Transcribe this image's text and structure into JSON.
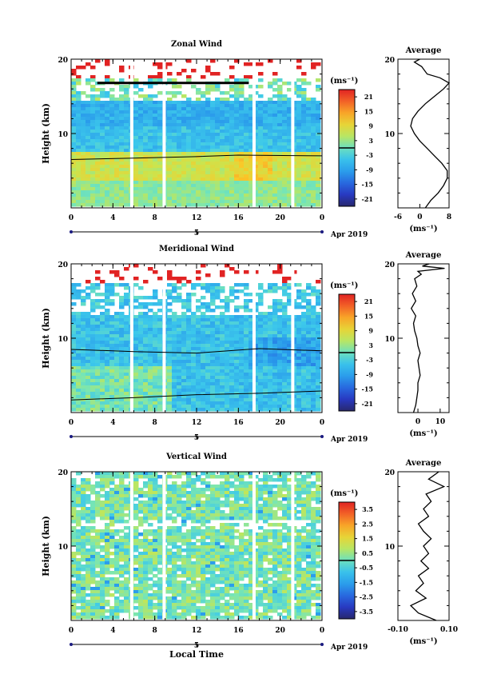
{
  "x_axis_title": "Local Time",
  "chart_data": [
    {
      "type": "heatmap",
      "title": "Zonal Wind",
      "ylabel": "Height (km)",
      "xlim": [
        0,
        24
      ],
      "ylim": [
        0,
        20
      ],
      "xticks": [
        "0",
        "4",
        "8",
        "12",
        "16",
        "20",
        "0"
      ],
      "yticks": [
        "10",
        "20"
      ],
      "date_label": "5",
      "date_suffix": "Apr 2019",
      "colorbar": {
        "unit": "(ms⁻¹)",
        "ticks": [
          "21",
          "15",
          "9",
          "3",
          "-3",
          "-9",
          "-15",
          "-21"
        ],
        "range": [
          -24,
          24
        ]
      },
      "data_gaps_hours": [
        5.8,
        8.9,
        17.5,
        21.2
      ],
      "average": {
        "title": "Average",
        "xlabel": "(ms⁻¹)",
        "xlim": [
          -6,
          8
        ],
        "xticks": [
          "-6",
          "0",
          "8"
        ],
        "yticks": [
          "10",
          "20"
        ],
        "profile": [
          [
            1.5,
            0
          ],
          [
            3,
            1
          ],
          [
            5,
            2
          ],
          [
            6.5,
            3
          ],
          [
            7.5,
            4
          ],
          [
            7.5,
            5
          ],
          [
            6,
            6
          ],
          [
            4,
            7
          ],
          [
            2,
            8
          ],
          [
            0,
            9
          ],
          [
            -1.5,
            10
          ],
          [
            -2.5,
            11
          ],
          [
            -2,
            12
          ],
          [
            -0.5,
            13
          ],
          [
            1.5,
            14
          ],
          [
            4,
            15
          ],
          [
            6.5,
            16
          ],
          [
            8,
            16.8
          ],
          [
            5.5,
            17.5
          ],
          [
            2,
            18
          ],
          [
            0.5,
            19
          ],
          [
            -1.5,
            19.6
          ],
          [
            0,
            20
          ]
        ]
      }
    },
    {
      "type": "heatmap",
      "title": "Meridional Wind",
      "ylabel": "Height (km)",
      "xlim": [
        0,
        24
      ],
      "ylim": [
        0,
        20
      ],
      "xticks": [
        "0",
        "4",
        "8",
        "12",
        "16",
        "20",
        "0"
      ],
      "yticks": [
        "10",
        "20"
      ],
      "date_label": "5",
      "date_suffix": "Apr 2019",
      "colorbar": {
        "unit": "(ms⁻¹)",
        "ticks": [
          "21",
          "15",
          "9",
          "3",
          "-3",
          "-9",
          "-15",
          "-21"
        ],
        "range": [
          -24,
          24
        ]
      },
      "data_gaps_hours": [
        5.8,
        8.9,
        17.5,
        21.2
      ],
      "average": {
        "title": "Average",
        "xlabel": "(ms⁻¹)",
        "xlim": [
          -9,
          14
        ],
        "xticks": [
          "0",
          "10"
        ],
        "yticks": [
          "10",
          "20"
        ],
        "profile": [
          [
            -2,
            0
          ],
          [
            -1,
            1
          ],
          [
            -0.5,
            2
          ],
          [
            0,
            3
          ],
          [
            0,
            4
          ],
          [
            1,
            5
          ],
          [
            0.5,
            6
          ],
          [
            0,
            7
          ],
          [
            1,
            8
          ],
          [
            0,
            9
          ],
          [
            -0.5,
            10
          ],
          [
            -1.5,
            11
          ],
          [
            -2,
            12
          ],
          [
            -1,
            13
          ],
          [
            -3,
            14
          ],
          [
            -1,
            15
          ],
          [
            -2.5,
            16
          ],
          [
            -0.5,
            17
          ],
          [
            -1.5,
            18
          ],
          [
            1.5,
            18.6
          ],
          [
            0,
            19
          ],
          [
            12,
            19.4
          ],
          [
            2,
            19.7
          ],
          [
            5,
            20
          ]
        ]
      }
    },
    {
      "type": "heatmap",
      "title": "Vertical Wind",
      "ylabel": "Height (km)",
      "xlabel": "Local Time",
      "xlim": [
        0,
        24
      ],
      "ylim": [
        0,
        20
      ],
      "xticks": [
        "0",
        "4",
        "8",
        "12",
        "16",
        "20",
        "0"
      ],
      "yticks": [
        "10",
        "20"
      ],
      "date_label": "5",
      "date_suffix": "Apr 2019",
      "colorbar": {
        "unit": "(ms⁻¹)",
        "ticks": [
          "3.5",
          "2.5",
          "1.5",
          "0.5",
          "-0.5",
          "-1.5",
          "-2.5",
          "-3.5"
        ],
        "range": [
          -4,
          4
        ]
      },
      "data_gaps_hours": [
        5.8,
        8.9,
        17.5,
        21.2
      ],
      "average": {
        "title": "Average",
        "xlabel": "(ms⁻¹)",
        "xlim": [
          -0.1,
          0.1
        ],
        "xticks": [
          "-0.10",
          "0.10"
        ],
        "yticks": [
          "10",
          "20"
        ],
        "profile": [
          [
            0.05,
            0
          ],
          [
            -0.02,
            1
          ],
          [
            -0.05,
            2
          ],
          [
            0.01,
            3
          ],
          [
            -0.03,
            4
          ],
          [
            0.0,
            5
          ],
          [
            -0.02,
            6
          ],
          [
            0.02,
            7
          ],
          [
            -0.01,
            8
          ],
          [
            0.02,
            9
          ],
          [
            0.0,
            10
          ],
          [
            0.03,
            11
          ],
          [
            0.0,
            12
          ],
          [
            -0.02,
            13
          ],
          [
            0.02,
            14
          ],
          [
            0.0,
            15
          ],
          [
            0.03,
            16
          ],
          [
            0.01,
            17
          ],
          [
            0.08,
            18
          ],
          [
            0.02,
            19
          ],
          [
            0.06,
            20
          ]
        ]
      }
    }
  ]
}
